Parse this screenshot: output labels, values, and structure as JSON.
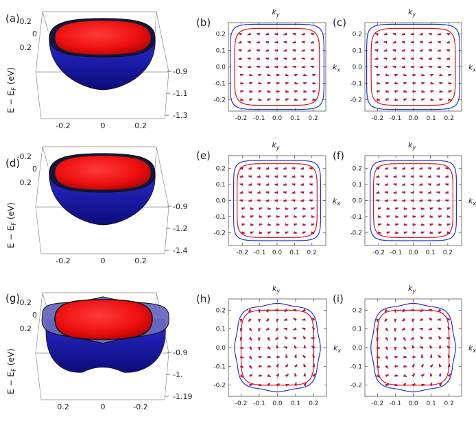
{
  "colors": {
    "outer_band": "#2030d8",
    "inner_band": "#e01010",
    "bowl_blue": "#2a2ad0",
    "bowl_red": "#ff1010"
  },
  "bowl_panels": [
    {
      "label": "(a)",
      "ylabel": "E − E",
      "ylabel_sub": "F",
      "ylabel_unit": " (eV)",
      "left_ticks": [
        "-0.2",
        "0",
        "0.2"
      ],
      "right_ticks": [
        "-0.9",
        "-1.1",
        "-1.3"
      ],
      "bottom_ticks": [
        "-0.2",
        "0",
        "0.2"
      ]
    },
    {
      "label": "(d)",
      "ylabel": "E − E",
      "ylabel_sub": "F",
      "ylabel_unit": " (eV)",
      "left_ticks": [
        "-0.2",
        "0",
        "0.2"
      ],
      "right_ticks": [
        "-0.9",
        "-1.2",
        "-1.4"
      ],
      "bottom_ticks": [
        "-0.2",
        "0",
        "0.2"
      ]
    },
    {
      "label": "(g)",
      "ylabel": "E − E",
      "ylabel_sub": "F",
      "ylabel_unit": " (eV)",
      "left_ticks": [
        "-0.2",
        "0",
        "0.2"
      ],
      "right_ticks": [
        "-0.9",
        "-1.",
        "-1.19"
      ],
      "bottom_ticks": [
        "0.2",
        "0",
        "-0.2"
      ]
    }
  ],
  "chart_data": [
    {
      "type": "scatter",
      "label": "(b)",
      "title": "k",
      "title_sub": "y",
      "xlabel": "k",
      "xlabel_sub": "x",
      "x_ticks": [
        "-0.2",
        "-0.1",
        "0.0",
        "0.1",
        "0.2"
      ],
      "y_ticks": [
        "0.2",
        "0.1",
        "0.0",
        "-0.1",
        "-0.2"
      ],
      "xlim": [
        -0.27,
        0.27
      ],
      "ylim": [
        -0.27,
        0.27
      ],
      "shape": "square",
      "series": [
        {
          "color": "#2030d8",
          "radius": 0.26
        },
        {
          "color": "#e01010",
          "radius": 0.235
        }
      ]
    },
    {
      "type": "scatter",
      "label": "(c)",
      "title": "k",
      "title_sub": "y",
      "xlabel": "k",
      "xlabel_sub": "x",
      "x_ticks": [
        "-0.2",
        "-0.1",
        "0.0",
        "0.1",
        "0.2"
      ],
      "y_ticks": [
        "0.2",
        "0.1",
        "0.0",
        "-0.1",
        "-0.2"
      ],
      "xlim": [
        -0.27,
        0.27
      ],
      "ylim": [
        -0.27,
        0.27
      ],
      "shape": "square",
      "series": [
        {
          "color": "#2030d8",
          "radius": 0.26
        },
        {
          "color": "#e01010",
          "radius": 0.235
        }
      ]
    },
    {
      "type": "scatter",
      "label": "(e)",
      "title": "k",
      "title_sub": "y",
      "xlabel": "k",
      "xlabel_sub": "x",
      "x_ticks": [
        "-0.2",
        "-0.1",
        "0.0",
        "0.1",
        "0.2"
      ],
      "y_ticks": [
        "0.2",
        "0.1",
        "0.0",
        "-0.1",
        "-0.2"
      ],
      "xlim": [
        -0.28,
        0.28
      ],
      "ylim": [
        -0.28,
        0.28
      ],
      "shape": "square",
      "series": [
        {
          "color": "#2030d8",
          "radius": 0.25
        },
        {
          "color": "#e01010",
          "radius": 0.23
        }
      ]
    },
    {
      "type": "scatter",
      "label": "(f)",
      "title": "k",
      "title_sub": "y",
      "xlabel": "k",
      "xlabel_sub": "x",
      "x_ticks": [
        "-0.2",
        "-0.1",
        "0.0",
        "0.1",
        "0.2"
      ],
      "y_ticks": [
        "0.2",
        "0.1",
        "0.0",
        "-0.1",
        "-0.2"
      ],
      "xlim": [
        -0.28,
        0.28
      ],
      "ylim": [
        -0.28,
        0.28
      ],
      "shape": "square",
      "series": [
        {
          "color": "#2030d8",
          "radius": 0.25
        },
        {
          "color": "#e01010",
          "radius": 0.23
        }
      ]
    },
    {
      "type": "scatter",
      "label": "(h)",
      "title": "k",
      "title_sub": "y",
      "xlabel": "k",
      "xlabel_sub": "x",
      "x_ticks": [
        "-0.2",
        "-0.1",
        "0.0",
        "0.1",
        "0.2"
      ],
      "y_ticks": [
        "0.2",
        "0.1",
        "0.0",
        "-0.1",
        "-0.2"
      ],
      "xlim": [
        -0.27,
        0.27
      ],
      "ylim": [
        -0.26,
        0.26
      ],
      "shape": "clover",
      "series": [
        {
          "color": "#2030d8",
          "radius": 0.245
        },
        {
          "color": "#e01010",
          "radius": 0.2
        }
      ]
    },
    {
      "type": "scatter",
      "label": "(i)",
      "title": "k",
      "title_sub": "y",
      "xlabel": "k",
      "xlabel_sub": "x",
      "x_ticks": [
        "-0.2",
        "-0.1",
        "0.0",
        "0.1",
        "0.2"
      ],
      "y_ticks": [
        "0.2",
        "0.1",
        "0.0",
        "-0.1",
        "-0.2"
      ],
      "xlim": [
        -0.27,
        0.27
      ],
      "ylim": [
        -0.26,
        0.26
      ],
      "shape": "clover",
      "series": [
        {
          "color": "#2030d8",
          "radius": 0.245
        },
        {
          "color": "#e01010",
          "radius": 0.2
        }
      ]
    }
  ]
}
